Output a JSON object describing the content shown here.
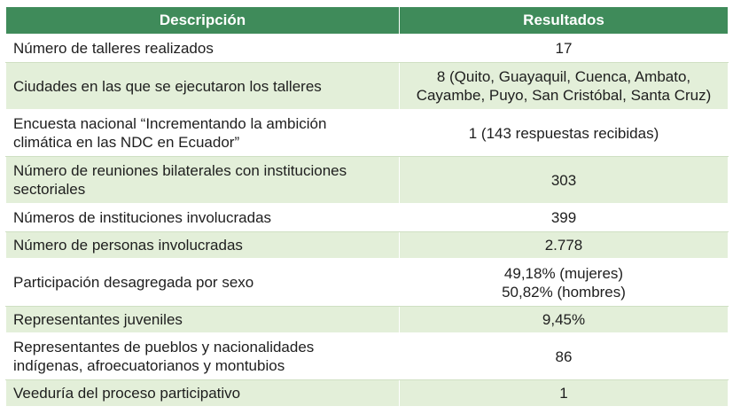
{
  "header": {
    "col_description": "Descripción",
    "col_results": "Resultados"
  },
  "rows": [
    {
      "description": [
        "Número de talleres realizados"
      ],
      "result": [
        "17"
      ]
    },
    {
      "description": [
        "Ciudades en las que se ejecutaron los talleres"
      ],
      "result": [
        "8 (Quito, Guayaquil, Cuenca, Ambato,",
        "Cayambe, Puyo, San Cristóbal, Santa Cruz)"
      ]
    },
    {
      "description": [
        "Encuesta nacional “Incrementando la ambición",
        "climática en las NDC en Ecuador”"
      ],
      "result": [
        "1 (143 respuestas recibidas)"
      ]
    },
    {
      "description": [
        "Número de reuniones bilaterales con instituciones",
        "sectoriales"
      ],
      "result": [
        "303"
      ]
    },
    {
      "description": [
        "Números de instituciones involucradas"
      ],
      "result": [
        "399"
      ]
    },
    {
      "description": [
        "Número de personas involucradas"
      ],
      "result": [
        "2.778"
      ]
    },
    {
      "description": [
        "Participación desagregada por sexo"
      ],
      "result": [
        "49,18% (mujeres)",
        "50,82% (hombres)"
      ]
    },
    {
      "description": [
        "Representantes juveniles"
      ],
      "result": [
        "9,45%"
      ]
    },
    {
      "description": [
        "Representantes de pueblos y nacionalidades",
        "indígenas, afroecuatorianos y montubios"
      ],
      "result": [
        "86"
      ]
    },
    {
      "description": [
        "Veeduría del proceso participativo"
      ],
      "result": [
        "1"
      ]
    }
  ]
}
